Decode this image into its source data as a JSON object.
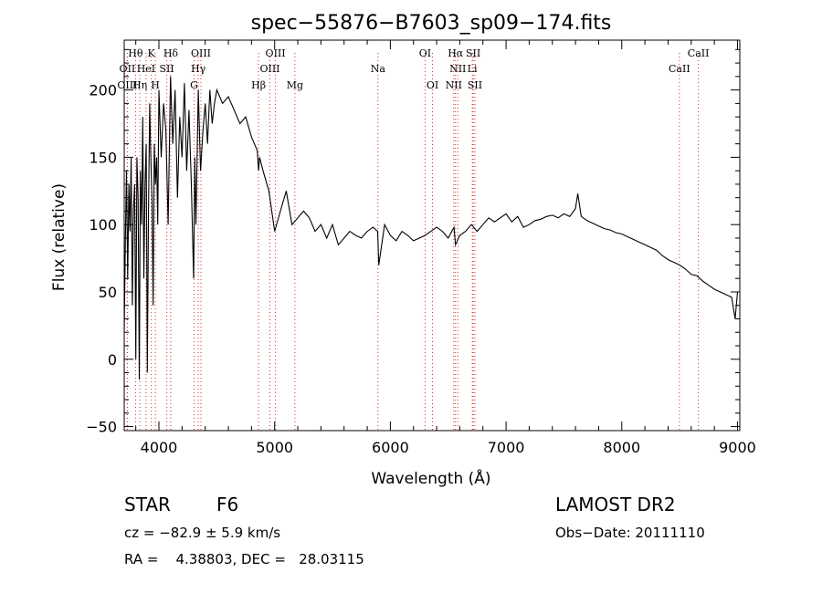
{
  "chart_data": {
    "type": "line",
    "title": "spec−55876−B7603_sp09−174.fits",
    "xlabel": "Wavelength (Å)",
    "ylabel": "Flux (relative)",
    "xlim": [
      3700,
      9020
    ],
    "ylim": [
      -53,
      237
    ],
    "xticks": [
      4000,
      5000,
      6000,
      7000,
      8000,
      9000
    ],
    "yticks": [
      -50,
      0,
      50,
      100,
      150,
      200
    ],
    "xtick_labels": [
      "4000",
      "5000",
      "6000",
      "7000",
      "8000",
      "9000"
    ],
    "ytick_labels": [
      "−50",
      "0",
      "50",
      "100",
      "150",
      "200"
    ],
    "grid": false,
    "series": [
      {
        "color": "#000000",
        "x": [
          3700,
          3710,
          3720,
          3730,
          3740,
          3750,
          3760,
          3770,
          3780,
          3790,
          3800,
          3810,
          3820,
          3830,
          3840,
          3850,
          3860,
          3870,
          3880,
          3890,
          3900,
          3910,
          3920,
          3930,
          3940,
          3950,
          3960,
          3970,
          3980,
          3990,
          4000,
          4020,
          4040,
          4060,
          4080,
          4100,
          4120,
          4140,
          4160,
          4180,
          4200,
          4220,
          4240,
          4260,
          4280,
          4300,
          4310,
          4320,
          4340,
          4360,
          4380,
          4400,
          4420,
          4440,
          4460,
          4480,
          4500,
          4550,
          4600,
          4650,
          4700,
          4750,
          4800,
          4850,
          4861,
          4870,
          4900,
          4950,
          5000,
          5050,
          5100,
          5150,
          5200,
          5250,
          5300,
          5350,
          5400,
          5450,
          5500,
          5550,
          5600,
          5650,
          5700,
          5750,
          5800,
          5850,
          5890,
          5900,
          5950,
          6000,
          6050,
          6100,
          6150,
          6200,
          6250,
          6300,
          6350,
          6400,
          6450,
          6500,
          6550,
          6563,
          6600,
          6650,
          6700,
          6750,
          6800,
          6850,
          6900,
          6950,
          7000,
          7050,
          7100,
          7150,
          7200,
          7250,
          7300,
          7350,
          7400,
          7450,
          7500,
          7550,
          7600,
          7620,
          7650,
          7700,
          7750,
          7800,
          7850,
          7900,
          7950,
          8000,
          8050,
          8100,
          8150,
          8200,
          8250,
          8300,
          8350,
          8400,
          8450,
          8500,
          8550,
          8600,
          8650,
          8700,
          8750,
          8800,
          8850,
          8900,
          8950,
          8980,
          9000
        ],
        "y": [
          20,
          90,
          140,
          60,
          130,
          95,
          150,
          40,
          110,
          130,
          0,
          150,
          120,
          -15,
          140,
          100,
          180,
          60,
          130,
          160,
          -10,
          110,
          190,
          150,
          120,
          40,
          160,
          130,
          150,
          100,
          200,
          150,
          190,
          170,
          100,
          210,
          160,
          200,
          120,
          180,
          150,
          205,
          140,
          185,
          130,
          60,
          150,
          100,
          200,
          140,
          170,
          190,
          160,
          200,
          175,
          190,
          200,
          190,
          195,
          185,
          175,
          180,
          165,
          155,
          140,
          150,
          140,
          125,
          95,
          110,
          125,
          100,
          105,
          110,
          105,
          95,
          100,
          90,
          100,
          85,
          90,
          95,
          92,
          90,
          95,
          98,
          95,
          70,
          100,
          92,
          88,
          95,
          92,
          88,
          90,
          92,
          95,
          98,
          95,
          90,
          98,
          85,
          92,
          95,
          100,
          95,
          100,
          105,
          102,
          105,
          108,
          102,
          106,
          98,
          100,
          103,
          104,
          106,
          107,
          105,
          108,
          106,
          112,
          123,
          106,
          103,
          101,
          99,
          97,
          96,
          94,
          93,
          91,
          89,
          87,
          85,
          83,
          81,
          77,
          74,
          72,
          70,
          67,
          63,
          62,
          58,
          55,
          52,
          50,
          48,
          46,
          30,
          50
        ]
      }
    ],
    "lines": [
      {
        "name": "Hθ",
        "x": 3798,
        "row": 1
      },
      {
        "name": "OII",
        "x": 3727,
        "row": 2
      },
      {
        "name": "OIII",
        "x": 3727,
        "row": 3
      },
      {
        "name": "K",
        "x": 3934,
        "row": 1
      },
      {
        "name": "HeI",
        "x": 3889,
        "row": 2
      },
      {
        "name": "Hη",
        "x": 3835,
        "row": 3
      },
      {
        "name": "SII",
        "x": 4068,
        "row": 2
      },
      {
        "name": "H",
        "x": 3969,
        "row": 3
      },
      {
        "name": "Hδ",
        "x": 4102,
        "row": 1
      },
      {
        "name": "OIII",
        "x": 4363,
        "row": 1
      },
      {
        "name": "Hγ",
        "x": 4340,
        "row": 2
      },
      {
        "name": "G",
        "x": 4304,
        "row": 3
      },
      {
        "name": "OIII",
        "x": 5007,
        "row": 1
      },
      {
        "name": "OIII",
        "x": 4959,
        "row": 2
      },
      {
        "name": "Hβ",
        "x": 4861,
        "row": 3
      },
      {
        "name": "Mg",
        "x": 5175,
        "row": 3
      },
      {
        "name": "Na",
        "x": 5893,
        "row": 2
      },
      {
        "name": "OI",
        "x": 6300,
        "row": 1
      },
      {
        "name": "OI",
        "x": 6364,
        "row": 3
      },
      {
        "name": "Hα",
        "x": 6563,
        "row": 1
      },
      {
        "name": "SII",
        "x": 6716,
        "row": 1
      },
      {
        "name": "NII",
        "x": 6583,
        "row": 2
      },
      {
        "name": "Li",
        "x": 6708,
        "row": 2
      },
      {
        "name": "NII",
        "x": 6548,
        "row": 3
      },
      {
        "name": "SII",
        "x": 6731,
        "row": 3
      },
      {
        "name": "CaII",
        "x": 8662,
        "row": 1
      },
      {
        "name": "CaII",
        "x": 8498,
        "row": 2
      }
    ]
  },
  "footer": {
    "star_class": "STAR",
    "subclass": "F6",
    "survey": "LAMOST DR2",
    "cz": "cz = −82.9 ± 5.9 km/s",
    "obs_date": "Obs−Date: 20111110",
    "radec": "RA =    4.38803, DEC =   28.03115"
  }
}
